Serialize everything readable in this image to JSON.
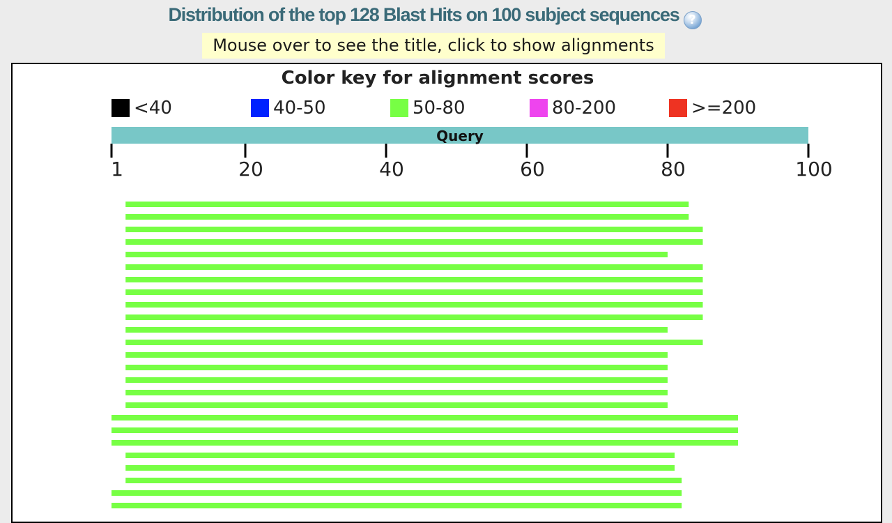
{
  "header": {
    "title": "Distribution of the top 128 Blast Hits on 100 subject sequences",
    "help_icon": "help-icon",
    "hint": "Mouse over to see the title, click to show alignments"
  },
  "colors": {
    "query_bar": "#78c7c7",
    "lt40": "#000000",
    "40_50": "#0022ff",
    "50_80": "#77ff44",
    "80_200": "#ee44ee",
    "ge200": "#ee3322"
  },
  "chart_data": {
    "type": "bar",
    "title": "Color key for alignment scores",
    "legend": [
      {
        "label": "<40",
        "color": "#000000"
      },
      {
        "label": "40-50",
        "color": "#0022ff"
      },
      {
        "label": "50-80",
        "color": "#77ff44"
      },
      {
        "label": "80-200",
        "color": "#ee44ee"
      },
      {
        "label": ">=200",
        "color": "#ee3322"
      }
    ],
    "query_label": "Query",
    "xlim": [
      1,
      100
    ],
    "ticks": [
      1,
      20,
      40,
      60,
      80,
      100
    ],
    "hits": [
      {
        "start": 3,
        "end": 83,
        "score_class": "50-80"
      },
      {
        "start": 3,
        "end": 83,
        "score_class": "50-80"
      },
      {
        "start": 3,
        "end": 85,
        "score_class": "50-80"
      },
      {
        "start": 3,
        "end": 85,
        "score_class": "50-80"
      },
      {
        "start": 3,
        "end": 80,
        "score_class": "50-80"
      },
      {
        "start": 3,
        "end": 85,
        "score_class": "50-80"
      },
      {
        "start": 3,
        "end": 85,
        "score_class": "50-80"
      },
      {
        "start": 3,
        "end": 85,
        "score_class": "50-80"
      },
      {
        "start": 3,
        "end": 85,
        "score_class": "50-80"
      },
      {
        "start": 3,
        "end": 85,
        "score_class": "50-80"
      },
      {
        "start": 3,
        "end": 80,
        "score_class": "50-80"
      },
      {
        "start": 3,
        "end": 85,
        "score_class": "50-80"
      },
      {
        "start": 3,
        "end": 80,
        "score_class": "50-80"
      },
      {
        "start": 3,
        "end": 80,
        "score_class": "50-80"
      },
      {
        "start": 3,
        "end": 80,
        "score_class": "50-80"
      },
      {
        "start": 3,
        "end": 80,
        "score_class": "50-80"
      },
      {
        "start": 3,
        "end": 80,
        "score_class": "50-80"
      },
      {
        "start": 1,
        "end": 90,
        "score_class": "50-80"
      },
      {
        "start": 1,
        "end": 90,
        "score_class": "50-80"
      },
      {
        "start": 1,
        "end": 90,
        "score_class": "50-80"
      },
      {
        "start": 3,
        "end": 81,
        "score_class": "50-80"
      },
      {
        "start": 3,
        "end": 81,
        "score_class": "50-80"
      },
      {
        "start": 3,
        "end": 82,
        "score_class": "50-80"
      },
      {
        "start": 1,
        "end": 82,
        "score_class": "50-80"
      },
      {
        "start": 1,
        "end": 82,
        "score_class": "50-80"
      }
    ]
  }
}
